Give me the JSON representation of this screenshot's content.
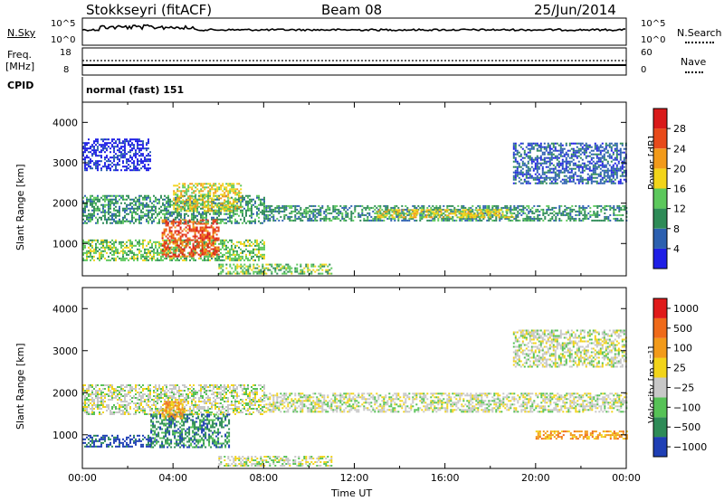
{
  "header": {
    "title": "Stokkseyri (fitACF)",
    "beam": "Beam 08",
    "date": "25/Jun/2014"
  },
  "nsky_panel": {
    "left_label": "N.Sky",
    "left_ticks": [
      "10^5",
      "10^0"
    ],
    "right_ticks": [
      "10^5",
      "10^0"
    ],
    "right_label": "N.Search"
  },
  "freq_panel": {
    "left_label_1": "Freq.",
    "left_label_2": "[MHz]",
    "left_ticks": [
      "18",
      "8"
    ],
    "right_ticks": [
      "60",
      "0"
    ],
    "right_label": "Nave",
    "cpid_label": "CPID",
    "cpid_text": "normal (fast) 151"
  },
  "chart_data": [
    {
      "type": "heatmap",
      "name": "power",
      "ylabel": "Slant Range [km]",
      "yticks": [
        1000,
        2000,
        3000,
        4000
      ],
      "ylim": [
        200,
        4500
      ],
      "xlim": [
        0,
        24
      ],
      "colorbar": {
        "label": "Power [dB]",
        "ticks": [
          "4",
          "8",
          "12",
          "16",
          "20",
          "24",
          "28"
        ],
        "colors": [
          "#1f1fe6",
          "#2c60b0",
          "#2e8b57",
          "#5cc85c",
          "#f2d41a",
          "#f29a1a",
          "#e84a1a",
          "#d91a1a"
        ]
      },
      "bands": [
        {
          "t": [
            0.0,
            8.0
          ],
          "r": [
            1500,
            2200
          ],
          "level": 2
        },
        {
          "t": [
            0.0,
            8.0
          ],
          "r": [
            600,
            1100
          ],
          "level": 3
        },
        {
          "t": [
            3.5,
            6.0
          ],
          "r": [
            700,
            1600
          ],
          "level": 6
        },
        {
          "t": [
            4.0,
            7.0
          ],
          "r": [
            1800,
            2500
          ],
          "level": 4
        },
        {
          "t": [
            8.0,
            24.0
          ],
          "r": [
            1550,
            1950
          ],
          "level": 2
        },
        {
          "t": [
            13.0,
            19.0
          ],
          "r": [
            1650,
            1850
          ],
          "level": 4
        },
        {
          "t": [
            19.0,
            24.0
          ],
          "r": [
            2500,
            3500
          ],
          "level": 1
        },
        {
          "t": [
            0.0,
            3.0
          ],
          "r": [
            2800,
            3600
          ],
          "level": 0
        },
        {
          "t": [
            6.0,
            11.0
          ],
          "r": [
            250,
            500
          ],
          "level": 3
        }
      ]
    },
    {
      "type": "heatmap",
      "name": "velocity",
      "ylabel": "Slant Range [km]",
      "xlabel": "Time UT",
      "xticks": [
        "00:00",
        "04:00",
        "08:00",
        "12:00",
        "16:00",
        "20:00",
        "00:00"
      ],
      "yticks": [
        1000,
        2000,
        3000,
        4000
      ],
      "ylim": [
        200,
        4500
      ],
      "xlim": [
        0,
        24
      ],
      "colorbar": {
        "label": "Velocity [m s⁻¹]",
        "ticks": [
          "1000",
          "500",
          "100",
          "25",
          "−25",
          "−100",
          "−500",
          "−1000"
        ],
        "colors": [
          "#1f3fb5",
          "#2e8b57",
          "#56c256",
          "#c8c8c8",
          "#f2d41a",
          "#f29a1a",
          "#ef6a1a",
          "#e01a1a"
        ]
      },
      "bands": [
        {
          "t": [
            0.0,
            8.0
          ],
          "r": [
            1500,
            2200
          ],
          "level": 3
        },
        {
          "t": [
            3.0,
            6.5
          ],
          "r": [
            700,
            1500
          ],
          "level": 1
        },
        {
          "t": [
            0.0,
            3.0
          ],
          "r": [
            700,
            1000
          ],
          "level": 0
        },
        {
          "t": [
            8.0,
            24.0
          ],
          "r": [
            1550,
            2000
          ],
          "level": 3
        },
        {
          "t": [
            19.0,
            24.0
          ],
          "r": [
            2600,
            3500
          ],
          "level": 3
        },
        {
          "t": [
            6.0,
            11.0
          ],
          "r": [
            250,
            500
          ],
          "level": 3
        },
        {
          "t": [
            3.5,
            4.5
          ],
          "r": [
            1400,
            1800
          ],
          "level": 5
        },
        {
          "t": [
            20.0,
            24.0
          ],
          "r": [
            900,
            1100
          ],
          "level": 5
        }
      ]
    }
  ]
}
